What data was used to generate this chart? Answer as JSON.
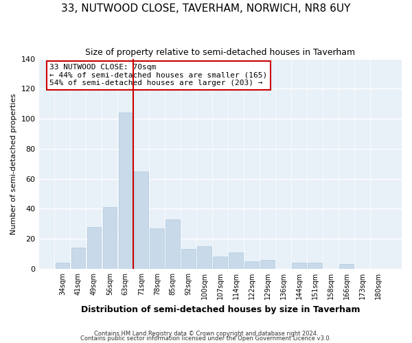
{
  "title": "33, NUTWOOD CLOSE, TAVERHAM, NORWICH, NR8 6UY",
  "subtitle": "Size of property relative to semi-detached houses in Taverham",
  "xlabel": "Distribution of semi-detached houses by size in Taverham",
  "ylabel": "Number of semi-detached properties",
  "bar_color": "#c8daea",
  "bar_edge_color": "#afc8dc",
  "categories": [
    "34sqm",
    "41sqm",
    "49sqm",
    "56sqm",
    "63sqm",
    "71sqm",
    "78sqm",
    "85sqm",
    "92sqm",
    "100sqm",
    "107sqm",
    "114sqm",
    "122sqm",
    "129sqm",
    "136sqm",
    "144sqm",
    "151sqm",
    "158sqm",
    "166sqm",
    "173sqm",
    "180sqm"
  ],
  "values": [
    4,
    14,
    28,
    41,
    104,
    65,
    27,
    33,
    13,
    15,
    8,
    11,
    5,
    6,
    0,
    4,
    4,
    0,
    3,
    0,
    0
  ],
  "ylim": [
    0,
    140
  ],
  "yticks": [
    0,
    20,
    40,
    60,
    80,
    100,
    120,
    140
  ],
  "highlight_line_index": 5,
  "highlight_color": "#cc0000",
  "annotation_title": "33 NUTWOOD CLOSE: 70sqm",
  "annotation_line1": "← 44% of semi-detached houses are smaller (165)",
  "annotation_line2": "54% of semi-detached houses are larger (203) →",
  "annotation_box_color": "#ffffff",
  "annotation_box_edge": "#cc0000",
  "footer1": "Contains HM Land Registry data © Crown copyright and database right 2024.",
  "footer2": "Contains public sector information licensed under the Open Government Licence v3.0.",
  "background_color": "#ffffff",
  "plot_bg_color": "#e8f0f8",
  "grid_color": "#ffffff",
  "title_fontsize": 11,
  "subtitle_fontsize": 9
}
